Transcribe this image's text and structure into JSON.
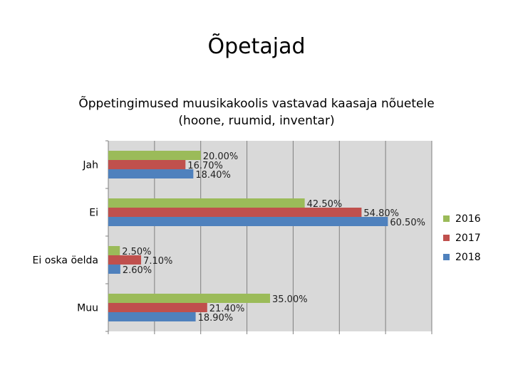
{
  "page_title": "Õpetajad",
  "chart_data": {
    "type": "bar",
    "orientation": "horizontal",
    "title_lines": [
      "Õppetingimused muusikakoolis vastavad kaasaja nõuetele",
      "(hoone, ruumid, inventar)"
    ],
    "categories": [
      "Jah",
      "Ei",
      "Ei oska öelda",
      "Muu"
    ],
    "series": [
      {
        "name": "2016",
        "color": "#9bbb59",
        "values": [
          20.0,
          42.5,
          2.5,
          35.0
        ],
        "labels": [
          "20.00%",
          "42.50%",
          "2.50%",
          "35.00%"
        ]
      },
      {
        "name": "2017",
        "color": "#c0504d",
        "values": [
          16.7,
          54.8,
          7.1,
          21.4
        ],
        "labels": [
          "16.70%",
          "54.80%",
          "7.10%",
          "21.40%"
        ]
      },
      {
        "name": "2018",
        "color": "#4f81bd",
        "values": [
          18.4,
          60.5,
          2.6,
          18.9
        ],
        "labels": [
          "18.40%",
          "60.50%",
          "2.60%",
          "18.90%"
        ]
      }
    ],
    "xlim": [
      0,
      70
    ],
    "grid": true,
    "legend_position": "right"
  }
}
